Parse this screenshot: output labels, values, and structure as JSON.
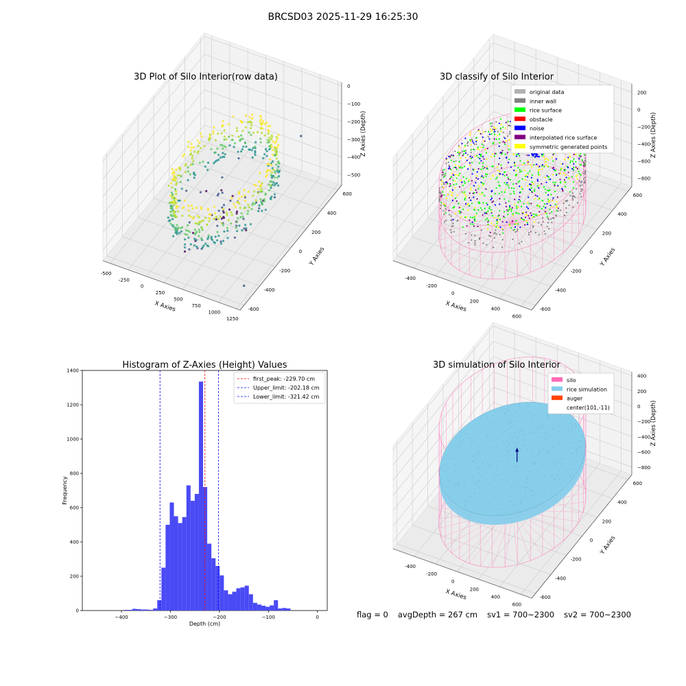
{
  "suptitle": "BRCSD03 2025-11-29 16:25:30",
  "footer": {
    "flag": "flag = 0",
    "avg_depth": "avgDepth = 267 cm",
    "sv1": "sv1 = 700~2300",
    "sv2": "sv2 = 700~2300"
  },
  "chart_data": [
    {
      "type": "scatter",
      "subtype": "3d",
      "title": "3D Plot of Silo Interior(row data)",
      "xlabel": "X Axies",
      "ylabel": "Y Axies",
      "zlabel": "Z Axies (Depth)",
      "x_ticks": [
        "-500",
        "-250",
        "0",
        "250",
        "500",
        "750",
        "1000",
        "1250"
      ],
      "y_ticks": [
        "-600",
        "-400",
        "-200",
        "0",
        "200",
        "400",
        "600"
      ],
      "z_ticks": [
        "0",
        "−100",
        "−200",
        "−300",
        "−400",
        "−500"
      ],
      "xlim": [
        -600,
        1300
      ],
      "ylim": [
        -650,
        650
      ],
      "zlim": [
        -560,
        20
      ],
      "colormap": "viridis",
      "points_description": "ring of scan points around silo wall from about -300 to -450 depth, sparse points below -450",
      "outliers": [
        {
          "x": 1300,
          "y": -600,
          "z": -450
        },
        {
          "x": 900,
          "y": 500,
          "z": -260
        }
      ]
    },
    {
      "type": "scatter",
      "subtype": "3d",
      "title": "3D classify of Silo Interior",
      "xlabel": "X Axies",
      "ylabel": "Y Axies",
      "zlabel": "Z Axies (Depth)",
      "x_ticks": [
        "-400",
        "-200",
        "0",
        "200",
        "400",
        "600"
      ],
      "y_ticks": [
        "-600",
        "-400",
        "-200",
        "0",
        "200",
        "400",
        "600"
      ],
      "z_ticks": [
        "200",
        "0",
        "−200",
        "−400",
        "−600",
        "−800"
      ],
      "z_top_tick_partial": "00",
      "xlim": [
        -600,
        700
      ],
      "ylim": [
        -650,
        650
      ],
      "zlim": [
        -900,
        300
      ],
      "legend_position": "top-right",
      "legend": [
        {
          "label": "original data",
          "color": "#b0b0b0"
        },
        {
          "label": "inner wall",
          "color": "#808080"
        },
        {
          "label": "rice surface",
          "color": "#00ff00"
        },
        {
          "label": "obstacle",
          "color": "#ff0000"
        },
        {
          "label": "noise",
          "color": "#0000ff"
        },
        {
          "label": "interpolated rice surface",
          "color": "#800080"
        },
        {
          "label": "symmetric generated points",
          "color": "#ffff00"
        }
      ],
      "silo_wireframe_color": "#ff69b4"
    },
    {
      "type": "bar",
      "subtype": "histogram",
      "title": "Histogram of Z-Axies (Height) Values",
      "xlabel": "Depth (cm)",
      "ylabel": "Frequency",
      "xlim": [
        -480,
        20
      ],
      "ylim": [
        0,
        1400
      ],
      "x_ticks": [
        -400,
        -300,
        -200,
        -100,
        0
      ],
      "y_ticks": [
        0,
        200,
        400,
        600,
        800,
        1000,
        1200,
        1400
      ],
      "bar_color": "#4a4af5",
      "bin_width": 8.5,
      "bins": [
        {
          "x0": -395,
          "value": 4
        },
        {
          "x0": -386.5,
          "value": 4
        },
        {
          "x0": -378,
          "value": 10
        },
        {
          "x0": -369.5,
          "value": 8
        },
        {
          "x0": -361,
          "value": 6
        },
        {
          "x0": -352.5,
          "value": 6
        },
        {
          "x0": -344,
          "value": 4
        },
        {
          "x0": -335.5,
          "value": 12
        },
        {
          "x0": -327,
          "value": 60
        },
        {
          "x0": -318.5,
          "value": 250
        },
        {
          "x0": -310,
          "value": 500
        },
        {
          "x0": -301.5,
          "value": 630
        },
        {
          "x0": -293,
          "value": 550
        },
        {
          "x0": -284.5,
          "value": 510
        },
        {
          "x0": -276,
          "value": 545
        },
        {
          "x0": -267.5,
          "value": 730
        },
        {
          "x0": -259,
          "value": 640
        },
        {
          "x0": -250.5,
          "value": 680
        },
        {
          "x0": -242,
          "value": 1335
        },
        {
          "x0": -233.5,
          "value": 720
        },
        {
          "x0": -225,
          "value": 390
        },
        {
          "x0": -216.5,
          "value": 305
        },
        {
          "x0": -208,
          "value": 260
        },
        {
          "x0": -199.5,
          "value": 205
        },
        {
          "x0": -191,
          "value": 118
        },
        {
          "x0": -182.5,
          "value": 95
        },
        {
          "x0": -174,
          "value": 110
        },
        {
          "x0": -165.5,
          "value": 130
        },
        {
          "x0": -157,
          "value": 135
        },
        {
          "x0": -148.5,
          "value": 145
        },
        {
          "x0": -140,
          "value": 95
        },
        {
          "x0": -131.5,
          "value": 45
        },
        {
          "x0": -123,
          "value": 35
        },
        {
          "x0": -114.5,
          "value": 28
        },
        {
          "x0": -106,
          "value": 22
        },
        {
          "x0": -97.5,
          "value": 30
        },
        {
          "x0": -89,
          "value": 60
        },
        {
          "x0": -80.5,
          "value": 12
        },
        {
          "x0": -72,
          "value": 15
        },
        {
          "x0": -63.5,
          "value": 12
        }
      ],
      "lines": [
        {
          "label": "first_peak: -229.70 cm",
          "value": -229.7,
          "color": "#ff0000"
        },
        {
          "label": "Upper_limit: -202.18 cm",
          "value": -202.18,
          "color": "#0000ff"
        },
        {
          "label": "Lower_limit: -321.42 cm",
          "value": -321.42,
          "color": "#0000ff"
        }
      ],
      "legend_position": "top-right"
    },
    {
      "type": "surface",
      "subtype": "3d",
      "title": "3D simulation of Silo Interior",
      "xlabel": "X Axies",
      "ylabel": "Y Axies",
      "zlabel": "Z Axies (Depth)",
      "x_ticks": [
        "-400",
        "-200",
        "0",
        "200",
        "400",
        "600"
      ],
      "y_ticks": [
        "-600",
        "-400",
        "-200",
        "0",
        "200",
        "400",
        "600"
      ],
      "z_ticks": [
        "400",
        "200",
        "0",
        "−200",
        "−400",
        "−600",
        "−800"
      ],
      "xlim": [
        -600,
        700
      ],
      "ylim": [
        -650,
        650
      ],
      "zlim": [
        -900,
        450
      ],
      "legend_position": "top-right",
      "legend": [
        {
          "label": "silo",
          "color": "#ff69b4"
        },
        {
          "label": "rice simulation",
          "color": "#87ceeb"
        },
        {
          "label": "auger",
          "color": "#ff4500"
        },
        {
          "label": "center(101,-11)",
          "color": ""
        }
      ],
      "rice_surface_depth": -267
    }
  ]
}
